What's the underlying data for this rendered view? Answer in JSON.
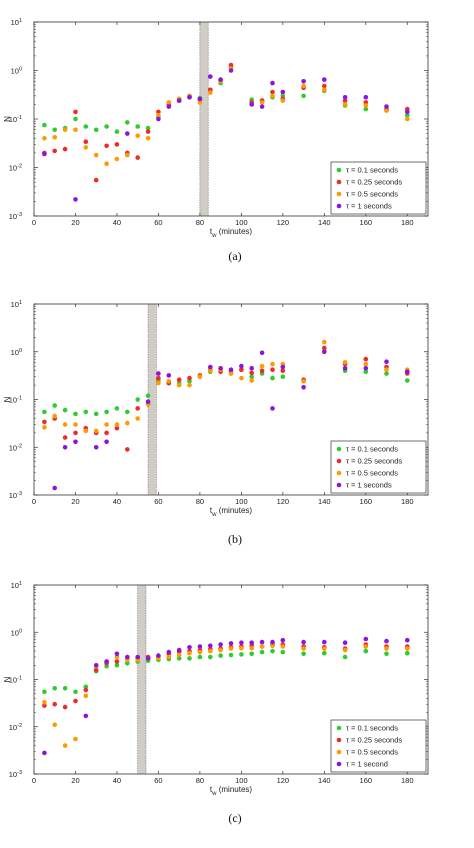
{
  "colors": {
    "green": "#2ecc2e",
    "red": "#ee2a2a",
    "orange": "#ff9a00",
    "purple": "#8a14e0",
    "band": "#c8c4bc",
    "axis": "#333333"
  },
  "chart_data": [
    {
      "type": "scatter",
      "caption": "(a)",
      "xlabel": "t",
      "xlabel_sub": "w",
      "xlabel_unit": "(minutes)",
      "ylabel": "N",
      "xlim": [
        0,
        190
      ],
      "ylim": [
        0.001,
        10
      ],
      "yscale": "log",
      "xticks": [
        0,
        20,
        40,
        60,
        80,
        100,
        120,
        140,
        160,
        180
      ],
      "yticks": [
        {
          "base": "10",
          "exp": "1"
        },
        {
          "base": "10",
          "exp": "0"
        },
        {
          "base": "10",
          "exp": "-1"
        },
        {
          "base": "10",
          "exp": "-2"
        },
        {
          "base": "10",
          "exp": "-3"
        }
      ],
      "shaded_band": [
        80,
        84
      ],
      "legend_position": "bottom-right",
      "series": [
        {
          "name": "τ = 0.1 seconds",
          "color": "green",
          "x": [
            5,
            10,
            15,
            20,
            25,
            30,
            35,
            40,
            45,
            50,
            55,
            60,
            65,
            70,
            75,
            80,
            85,
            90,
            95,
            105,
            110,
            115,
            120,
            130,
            140,
            150,
            160,
            170,
            180
          ],
          "y": [
            0.075,
            0.06,
            0.065,
            0.1,
            0.07,
            0.06,
            0.07,
            0.055,
            0.085,
            0.07,
            0.065,
            0.11,
            0.2,
            0.26,
            0.3,
            0.27,
            0.38,
            0.55,
            1.2,
            0.25,
            0.24,
            0.28,
            0.3,
            0.3,
            0.38,
            0.19,
            0.16,
            0.15,
            0.12
          ]
        },
        {
          "name": "τ = 0.25 seconds",
          "color": "red",
          "x": [
            5,
            10,
            15,
            20,
            25,
            30,
            35,
            40,
            45,
            50,
            55,
            60,
            65,
            70,
            75,
            80,
            85,
            90,
            95,
            105,
            110,
            115,
            120,
            130,
            140,
            150,
            160,
            170,
            180
          ],
          "y": [
            0.02,
            0.022,
            0.024,
            0.14,
            0.034,
            0.0055,
            0.028,
            0.03,
            0.02,
            0.016,
            0.055,
            0.14,
            0.2,
            0.24,
            0.28,
            0.25,
            0.4,
            0.62,
            1.3,
            0.22,
            0.24,
            0.36,
            0.26,
            0.44,
            0.48,
            0.24,
            0.22,
            0.16,
            0.16
          ]
        },
        {
          "name": "τ = 0.5 seconds",
          "color": "orange",
          "x": [
            5,
            10,
            15,
            20,
            25,
            30,
            35,
            40,
            45,
            50,
            55,
            60,
            65,
            70,
            75,
            80,
            85,
            90,
            95,
            105,
            110,
            115,
            120,
            130,
            140,
            150,
            160,
            170,
            180
          ],
          "y": [
            0.04,
            0.042,
            0.06,
            0.06,
            0.026,
            0.018,
            0.012,
            0.015,
            0.018,
            0.045,
            0.04,
            0.12,
            0.22,
            0.26,
            0.3,
            0.22,
            0.35,
            0.6,
            1.1,
            0.2,
            0.22,
            0.3,
            0.24,
            0.48,
            0.4,
            0.2,
            0.19,
            0.15,
            0.1
          ]
        },
        {
          "name": "τ = 1 seconds",
          "color": "purple",
          "x": [
            5,
            20,
            45,
            60,
            65,
            70,
            75,
            80,
            85,
            90,
            95,
            105,
            110,
            115,
            120,
            130,
            140,
            150,
            160,
            170,
            180
          ],
          "y": [
            0.019,
            0.0022,
            0.05,
            0.1,
            0.18,
            0.24,
            0.28,
            0.26,
            0.75,
            0.65,
            1.0,
            0.2,
            0.18,
            0.55,
            0.36,
            0.6,
            0.65,
            0.28,
            0.28,
            0.18,
            0.14
          ]
        }
      ]
    },
    {
      "type": "scatter",
      "caption": "(b)",
      "xlabel": "t",
      "xlabel_sub": "w",
      "xlabel_unit": "(minutes)",
      "ylabel": "N",
      "xlim": [
        0,
        190
      ],
      "ylim": [
        0.001,
        10
      ],
      "yscale": "log",
      "xticks": [
        0,
        20,
        40,
        60,
        80,
        100,
        120,
        140,
        160,
        180
      ],
      "yticks": [
        {
          "base": "10",
          "exp": "1"
        },
        {
          "base": "10",
          "exp": "0"
        },
        {
          "base": "10",
          "exp": "-1"
        },
        {
          "base": "10",
          "exp": "-2"
        },
        {
          "base": "10",
          "exp": "-3"
        }
      ],
      "shaded_band": [
        55,
        59
      ],
      "legend_position": "bottom-right",
      "series": [
        {
          "name": "τ = 0.1 seconds",
          "color": "green",
          "x": [
            5,
            10,
            15,
            20,
            25,
            30,
            35,
            40,
            45,
            50,
            55,
            60,
            65,
            70,
            75,
            80,
            85,
            90,
            95,
            100,
            105,
            110,
            115,
            120,
            130,
            140,
            150,
            160,
            170,
            180
          ],
          "y": [
            0.055,
            0.075,
            0.06,
            0.05,
            0.055,
            0.05,
            0.055,
            0.065,
            0.055,
            0.1,
            0.12,
            0.25,
            0.22,
            0.22,
            0.24,
            0.3,
            0.38,
            0.4,
            0.35,
            0.42,
            0.3,
            0.35,
            0.28,
            0.3,
            0.25,
            1.0,
            0.4,
            0.38,
            0.35,
            0.25
          ]
        },
        {
          "name": "τ = 0.25 seconds",
          "color": "red",
          "x": [
            5,
            10,
            15,
            20,
            25,
            30,
            35,
            40,
            45,
            50,
            55,
            60,
            65,
            70,
            75,
            80,
            85,
            90,
            95,
            100,
            105,
            110,
            115,
            120,
            130,
            140,
            150,
            160,
            170,
            180
          ],
          "y": [
            0.034,
            0.04,
            0.016,
            0.02,
            0.025,
            0.02,
            0.02,
            0.025,
            0.009,
            0.065,
            0.08,
            0.28,
            0.22,
            0.26,
            0.28,
            0.32,
            0.42,
            0.38,
            0.38,
            0.42,
            0.36,
            0.4,
            0.42,
            0.4,
            0.26,
            1.2,
            0.55,
            0.7,
            0.48,
            0.35
          ]
        },
        {
          "name": "τ = 0.5 seconds",
          "color": "orange",
          "x": [
            5,
            10,
            15,
            20,
            25,
            30,
            35,
            40,
            45,
            50,
            55,
            60,
            65,
            70,
            75,
            80,
            85,
            90,
            95,
            100,
            105,
            110,
            115,
            120,
            130,
            140,
            150,
            160,
            170,
            180
          ],
          "y": [
            0.026,
            0.045,
            0.03,
            0.03,
            0.022,
            0.022,
            0.03,
            0.03,
            0.032,
            0.04,
            0.08,
            0.22,
            0.24,
            0.2,
            0.2,
            0.3,
            0.4,
            0.42,
            0.35,
            0.28,
            0.25,
            0.5,
            0.55,
            0.55,
            0.24,
            1.6,
            0.6,
            0.55,
            0.42,
            0.42
          ]
        },
        {
          "name": "τ = 1 seconds",
          "color": "purple",
          "x": [
            10,
            15,
            20,
            30,
            35,
            55,
            60,
            65,
            85,
            90,
            95,
            100,
            105,
            110,
            115,
            120,
            130,
            140,
            150,
            160,
            170,
            180
          ],
          "y": [
            0.0014,
            0.01,
            0.013,
            0.01,
            0.013,
            0.09,
            0.35,
            0.32,
            0.48,
            0.45,
            0.42,
            0.5,
            0.45,
            0.95,
            0.065,
            0.48,
            0.18,
            1.0,
            0.45,
            0.45,
            0.62,
            0.38
          ]
        }
      ]
    },
    {
      "type": "scatter",
      "caption": "(c)",
      "xlabel": "t",
      "xlabel_sub": "w",
      "xlabel_unit": "(minutes)",
      "ylabel": "N",
      "xlim": [
        0,
        190
      ],
      "ylim": [
        0.001,
        10
      ],
      "yscale": "log",
      "xticks": [
        0,
        20,
        40,
        60,
        80,
        100,
        120,
        140,
        160,
        180
      ],
      "yticks": [
        {
          "base": "10",
          "exp": "1"
        },
        {
          "base": "10",
          "exp": "0"
        },
        {
          "base": "10",
          "exp": "-1"
        },
        {
          "base": "10",
          "exp": "-2"
        },
        {
          "base": "10",
          "exp": "-3"
        }
      ],
      "shaded_band": [
        50,
        54
      ],
      "legend_position": "bottom-right",
      "series": [
        {
          "name": "τ = 0.1 seconds",
          "color": "green",
          "x": [
            5,
            10,
            15,
            20,
            25,
            30,
            35,
            40,
            45,
            50,
            55,
            60,
            65,
            70,
            75,
            80,
            85,
            90,
            95,
            100,
            105,
            110,
            115,
            120,
            130,
            140,
            150,
            160,
            170,
            180
          ],
          "y": [
            0.055,
            0.065,
            0.065,
            0.055,
            0.07,
            0.15,
            0.19,
            0.2,
            0.22,
            0.24,
            0.25,
            0.26,
            0.27,
            0.28,
            0.28,
            0.3,
            0.3,
            0.32,
            0.33,
            0.34,
            0.35,
            0.38,
            0.4,
            0.38,
            0.35,
            0.36,
            0.3,
            0.4,
            0.35,
            0.36
          ]
        },
        {
          "name": "τ = 0.25 seconds",
          "color": "red",
          "x": [
            5,
            10,
            15,
            20,
            25,
            30,
            35,
            40,
            45,
            50,
            55,
            60,
            65,
            70,
            75,
            80,
            85,
            90,
            95,
            100,
            105,
            110,
            115,
            120,
            130,
            140,
            150,
            160,
            170,
            180
          ],
          "y": [
            0.028,
            0.03,
            0.026,
            0.035,
            0.06,
            0.16,
            0.22,
            0.24,
            0.27,
            0.28,
            0.3,
            0.3,
            0.35,
            0.38,
            0.4,
            0.42,
            0.44,
            0.45,
            0.48,
            0.5,
            0.52,
            0.5,
            0.55,
            0.55,
            0.5,
            0.48,
            0.45,
            0.55,
            0.5,
            0.5
          ]
        },
        {
          "name": "τ = 0.5 seconds",
          "color": "orange",
          "x": [
            5,
            10,
            15,
            20,
            25,
            30,
            35,
            40,
            45,
            50,
            55,
            60,
            65,
            70,
            75,
            80,
            85,
            90,
            95,
            100,
            105,
            110,
            115,
            120,
            130,
            140,
            150,
            160,
            170,
            180
          ],
          "y": [
            0.033,
            0.011,
            0.004,
            0.0055,
            0.045,
            0.19,
            0.24,
            0.3,
            0.26,
            0.26,
            0.28,
            0.28,
            0.3,
            0.33,
            0.36,
            0.38,
            0.4,
            0.42,
            0.45,
            0.46,
            0.46,
            0.5,
            0.52,
            0.5,
            0.45,
            0.45,
            0.42,
            0.5,
            0.45,
            0.45
          ]
        },
        {
          "name": "τ = 1 second",
          "color": "purple",
          "x": [
            5,
            25,
            30,
            35,
            40,
            45,
            50,
            55,
            60,
            65,
            70,
            75,
            80,
            85,
            90,
            95,
            100,
            105,
            110,
            115,
            120,
            130,
            140,
            150,
            160,
            170,
            180
          ],
          "y": [
            0.0028,
            0.017,
            0.2,
            0.24,
            0.35,
            0.3,
            0.3,
            0.28,
            0.32,
            0.38,
            0.42,
            0.48,
            0.5,
            0.52,
            0.55,
            0.58,
            0.6,
            0.6,
            0.62,
            0.62,
            0.68,
            0.62,
            0.62,
            0.6,
            0.72,
            0.65,
            0.68
          ]
        }
      ]
    }
  ]
}
